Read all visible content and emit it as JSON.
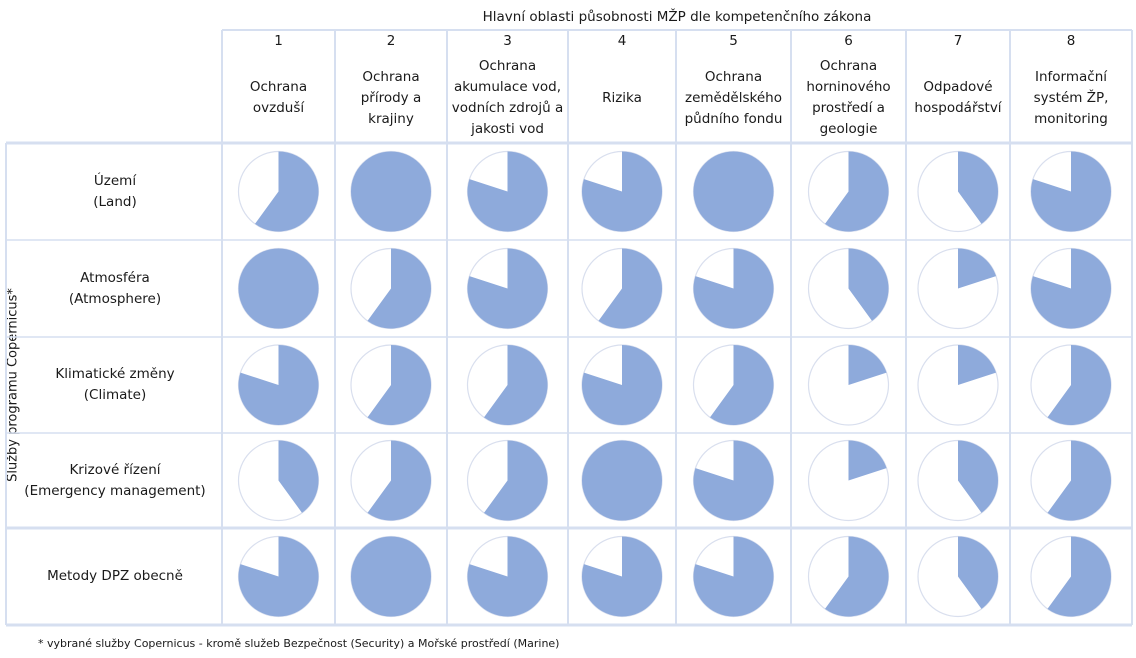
{
  "chart_data": {
    "type": "pie-matrix",
    "title": "Hlavní oblasti působnosti MŽP dle kompetenčního zákona",
    "ylabel": "Služby programu Copernicus*",
    "columns": [
      {
        "number": "1",
        "label": "Ochrana\novzduší"
      },
      {
        "number": "2",
        "label": "Ochrana\npřírody a\nkrajiny"
      },
      {
        "number": "3",
        "label": "Ochrana\nakumulace vod,\nvodních zdrojů a\njakosti vod"
      },
      {
        "number": "4",
        "label": "Rizika"
      },
      {
        "number": "5",
        "label": "Ochrana\nzemědělského\npůdního fondu"
      },
      {
        "number": "6",
        "label": "Ochrana\nhorninového\nprostředí a\ngeologie"
      },
      {
        "number": "7",
        "label": "Odpadové\nhospodářství"
      },
      {
        "number": "8",
        "label": "Informační\nsystém ŽP,\nmonitoring"
      }
    ],
    "rows": [
      {
        "label": "Území\n(Land)",
        "values": [
          0.6,
          1.0,
          0.8,
          0.8,
          1.0,
          0.6,
          0.4,
          0.8
        ]
      },
      {
        "label": "Atmosféra\n(Atmosphere)",
        "values": [
          1.0,
          0.6,
          0.8,
          0.6,
          0.8,
          0.4,
          0.2,
          0.8
        ]
      },
      {
        "label": "Klimatické změny\n(Climate)",
        "values": [
          0.8,
          0.6,
          0.6,
          0.8,
          0.6,
          0.2,
          0.2,
          0.6
        ]
      },
      {
        "label": "Krizové řízení\n(Emergency management)",
        "values": [
          0.4,
          0.6,
          0.6,
          1.0,
          0.8,
          0.2,
          0.4,
          0.6
        ]
      },
      {
        "label": "Metody DPZ obecně",
        "values": [
          0.8,
          1.0,
          0.8,
          0.8,
          0.8,
          0.6,
          0.4,
          0.6
        ]
      }
    ],
    "colors": {
      "fill": "#8eaadb",
      "empty": "#ffffff",
      "outline": "#d9dfee",
      "grid": "#d6dff0"
    }
  },
  "footnote": "* vybrané služby Copernicus - kromě služeb Bezpečnost (Security) a Mořské prostředí (Marine)"
}
